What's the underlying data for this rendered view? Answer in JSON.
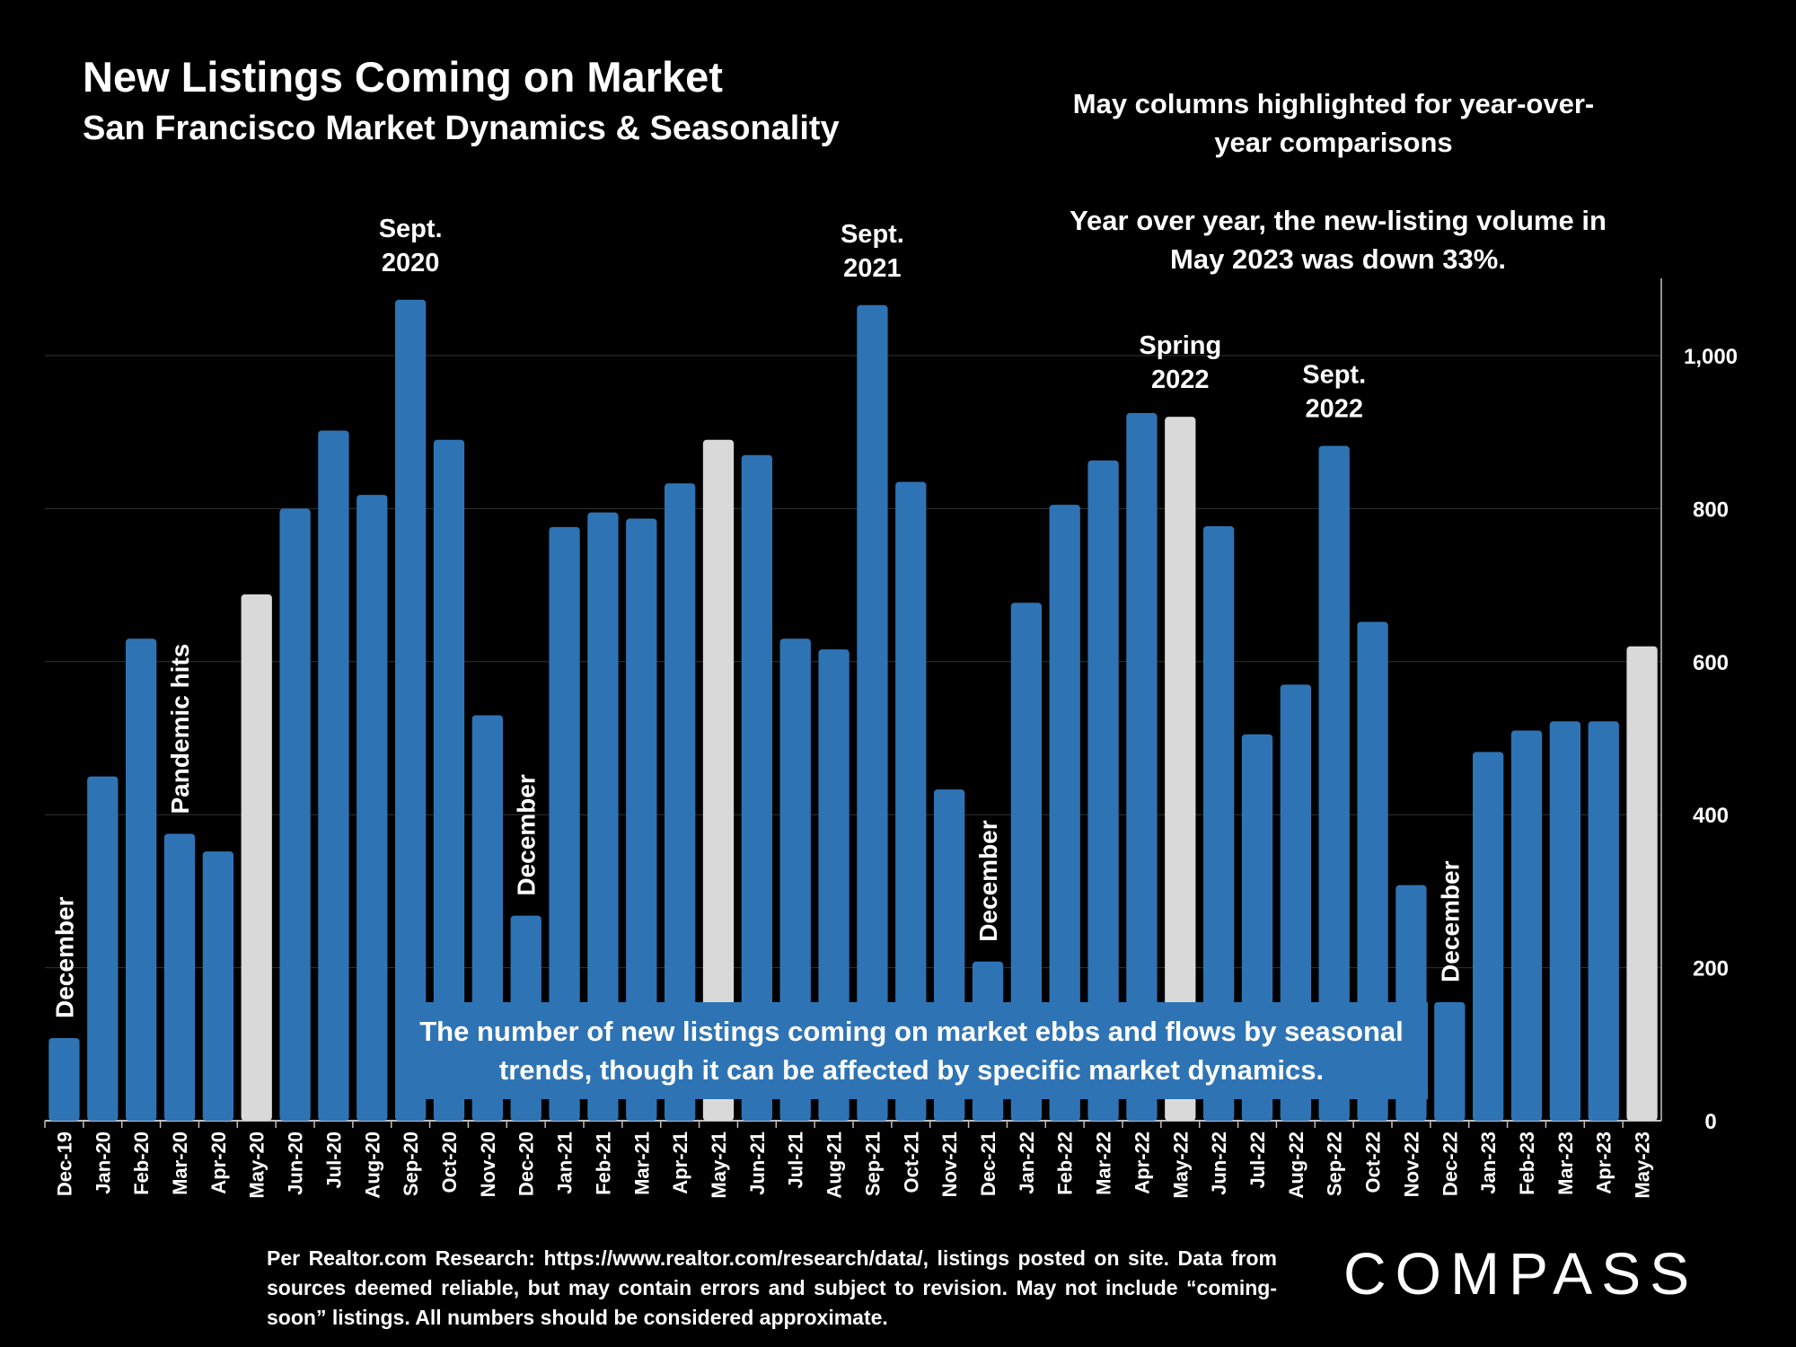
{
  "header": {
    "title": "New Listings Coming on Market",
    "subtitle": "San Francisco Market Dynamics & Seasonality"
  },
  "notes": {
    "highlight_note": "May columns highlighted for year-over-year comparisons",
    "yoy_note": "Year over year, the new-listing volume in May 2023 was down 33%."
  },
  "callout_box": "The number of new listings coming on market ebbs and flows by seasonal trends, though it can be affected by specific market dynamics.",
  "footer": "Per Realtor.com Research: https://www.realtor.com/research/data/, listings posted on site. Data from sources deemed reliable, but may contain errors and subject to revision. May not include “coming-soon” listings. All numbers should be considered approximate.",
  "logo": "COMPASS",
  "colors": {
    "bar": "#2e74b5",
    "highlight": "#d9d9d9",
    "background": "#000000",
    "grid": "#333333"
  },
  "chart_data": {
    "type": "bar",
    "categories": [
      "Dec-19",
      "Jan-20",
      "Feb-20",
      "Mar-20",
      "Apr-20",
      "May-20",
      "Jun-20",
      "Jul-20",
      "Aug-20",
      "Sep-20",
      "Oct-20",
      "Nov-20",
      "Dec-20",
      "Jan-21",
      "Feb-21",
      "Mar-21",
      "Apr-21",
      "May-21",
      "Jun-21",
      "Jul-21",
      "Aug-21",
      "Sep-21",
      "Oct-21",
      "Nov-21",
      "Dec-21",
      "Jan-22",
      "Feb-22",
      "Mar-22",
      "Apr-22",
      "May-22",
      "Jun-22",
      "Jul-22",
      "Aug-22",
      "Sep-22",
      "Oct-22",
      "Nov-22",
      "Dec-22",
      "Jan-23",
      "Feb-23",
      "Mar-23",
      "Apr-23",
      "May-23"
    ],
    "values": [
      108,
      450,
      630,
      375,
      352,
      688,
      800,
      902,
      818,
      1073,
      890,
      530,
      268,
      776,
      795,
      787,
      833,
      890,
      870,
      630,
      616,
      1066,
      835,
      433,
      208,
      677,
      805,
      863,
      925,
      920,
      777,
      505,
      570,
      882,
      652,
      308,
      155,
      482,
      510,
      522,
      522,
      620
    ],
    "highlighted": [
      "May-20",
      "May-21",
      "May-22",
      "May-23"
    ],
    "ylim": [
      0,
      1100
    ],
    "yticks": [
      0,
      200,
      400,
      600,
      800,
      1000
    ],
    "ytick_labels": [
      "0",
      "200",
      "400",
      "600",
      "800",
      "1,000"
    ],
    "y_axis_side": "right",
    "grid": true,
    "annotations": [
      {
        "category": "Dec-19",
        "lines": [
          "December"
        ],
        "orientation": "vertical"
      },
      {
        "category": "Mar-20",
        "lines": [
          "Pandemic hits"
        ],
        "orientation": "vertical"
      },
      {
        "category": "Sep-20",
        "lines": [
          "Sept.",
          "2020"
        ],
        "orientation": "horizontal"
      },
      {
        "category": "Dec-20",
        "lines": [
          "December"
        ],
        "orientation": "vertical"
      },
      {
        "category": "Sep-21",
        "lines": [
          "Sept.",
          "2021"
        ],
        "orientation": "horizontal"
      },
      {
        "category": "Dec-21",
        "lines": [
          "December"
        ],
        "orientation": "vertical"
      },
      {
        "category": "May-22",
        "lines": [
          "Spring",
          "2022"
        ],
        "orientation": "horizontal"
      },
      {
        "category": "Sep-22",
        "lines": [
          "Sept.",
          "2022"
        ],
        "orientation": "horizontal"
      },
      {
        "category": "Dec-22",
        "lines": [
          "December"
        ],
        "orientation": "vertical"
      }
    ]
  }
}
